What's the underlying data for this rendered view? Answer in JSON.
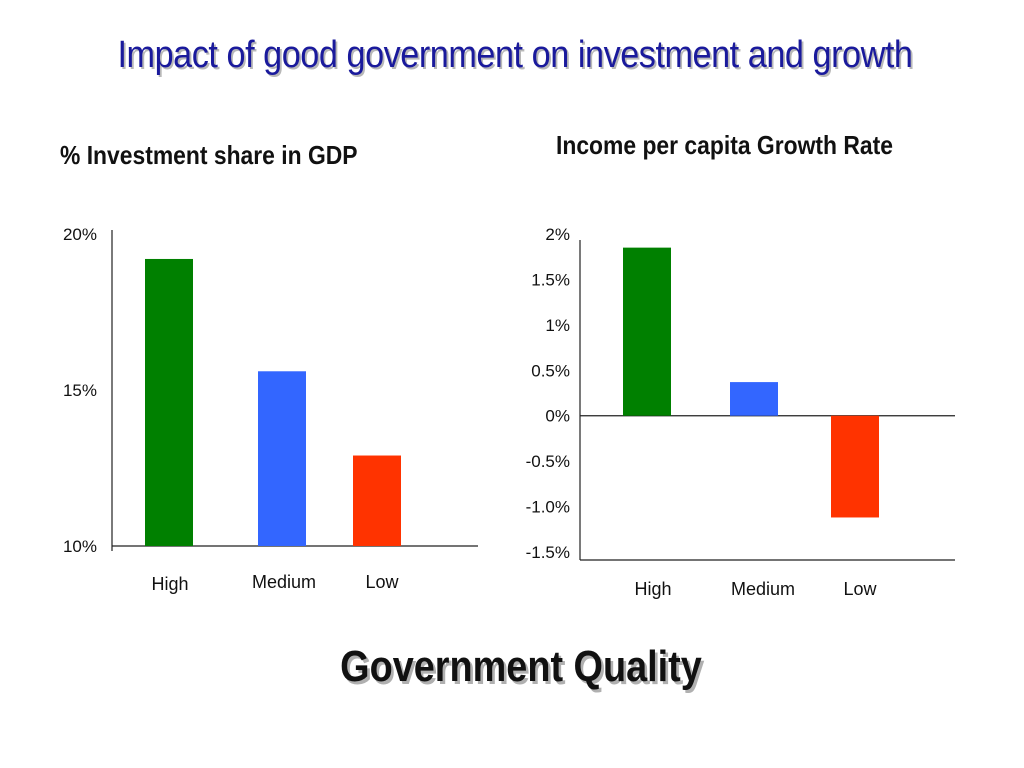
{
  "title": "Impact of good government on investment and growth",
  "footer": "Government Quality",
  "colors": {
    "high": "#008000",
    "medium": "#3366ff",
    "low": "#ff3300"
  },
  "chart_data": [
    {
      "type": "bar",
      "title": "% Investment share in GDP",
      "categories": [
        "High",
        "Medium",
        "Low"
      ],
      "values": [
        19.2,
        15.6,
        12.9
      ],
      "ylim": [
        10,
        20
      ],
      "yticks": [
        {
          "value": 20,
          "label": "20%"
        },
        {
          "value": 15,
          "label": "15%"
        },
        {
          "value": 10,
          "label": "10%"
        }
      ],
      "grid": false,
      "legend": "none"
    },
    {
      "type": "bar",
      "title": "Income per capita Growth Rate",
      "categories": [
        "High",
        "Medium",
        "Low"
      ],
      "values": [
        1.85,
        0.37,
        -1.12
      ],
      "ylim": [
        -1.5,
        2
      ],
      "yticks": [
        {
          "value": 2,
          "label": "2%"
        },
        {
          "value": 1.5,
          "label": "1.5%"
        },
        {
          "value": 1,
          "label": "1%"
        },
        {
          "value": 0.5,
          "label": "0.5%"
        },
        {
          "value": 0,
          "label": "0%"
        },
        {
          "value": -0.5,
          "label": "-0.5%"
        },
        {
          "value": -1,
          "label": "-1.0%"
        },
        {
          "value": -1.5,
          "label": "-1.5%"
        }
      ],
      "grid": false,
      "legend": "none"
    }
  ]
}
